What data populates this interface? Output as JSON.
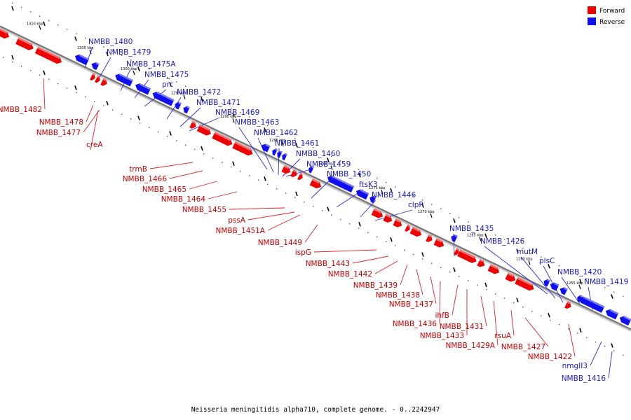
{
  "legend": {
    "forward_label": "Forward",
    "reverse_label": "Reverse",
    "forward_color": "#ee0000",
    "reverse_color": "#1010ee"
  },
  "caption": "Neisseria meningitidis alpha710, complete genome. - 0..2242947",
  "ticks": [
    "1310 kbp",
    "1305 kbp",
    "1300 kbp",
    "1295 kbp",
    "1290 kbp",
    "1285 kbp",
    "1280 kbp",
    "1275 kbp",
    "1270 kbp",
    "1265 kbp",
    "1260 kbp",
    "1255 kbp"
  ],
  "genes": [
    {
      "label": "NMBB_1482",
      "strand": "forward"
    },
    {
      "label": "NMBB_1480",
      "strand": "reverse"
    },
    {
      "label": "NMBB_1479",
      "strand": "reverse"
    },
    {
      "label": "NMBB_1478",
      "strand": "forward"
    },
    {
      "label": "NMBB_1477",
      "strand": "forward"
    },
    {
      "label": "creA",
      "strand": "forward"
    },
    {
      "label": "NMBB_1475A",
      "strand": "reverse"
    },
    {
      "label": "NMBB_1475",
      "strand": "reverse"
    },
    {
      "label": "prc",
      "strand": "reverse"
    },
    {
      "label": "NMBB_1472",
      "strand": "reverse"
    },
    {
      "label": "NMBB_1471",
      "strand": "reverse"
    },
    {
      "label": "NMBB_1469",
      "strand": "reverse"
    },
    {
      "label": "trmB",
      "strand": "forward"
    },
    {
      "label": "NMBB_1466",
      "strand": "forward"
    },
    {
      "label": "NMBB_1465",
      "strand": "forward"
    },
    {
      "label": "NMBB_1464",
      "strand": "forward"
    },
    {
      "label": "NMBB_1463",
      "strand": "reverse"
    },
    {
      "label": "NMBB_1462",
      "strand": "reverse"
    },
    {
      "label": "NMBB_1461",
      "strand": "reverse"
    },
    {
      "label": "NMBB_1460",
      "strand": "reverse"
    },
    {
      "label": "NMBB_1459",
      "strand": "reverse"
    },
    {
      "label": "NMBB_1455",
      "strand": "forward"
    },
    {
      "label": "pssA",
      "strand": "forward"
    },
    {
      "label": "NMBB_1451A",
      "strand": "forward"
    },
    {
      "label": "NMBB_1450",
      "strand": "reverse"
    },
    {
      "label": "NMBB_1449",
      "strand": "forward"
    },
    {
      "label": "ftsK3",
      "strand": "reverse"
    },
    {
      "label": "NMBB_1446",
      "strand": "reverse"
    },
    {
      "label": "clpP",
      "strand": "reverse"
    },
    {
      "label": "ispG",
      "strand": "forward"
    },
    {
      "label": "NMBB_1443",
      "strand": "forward"
    },
    {
      "label": "NMBB_1442",
      "strand": "forward"
    },
    {
      "label": "NMBB_1439",
      "strand": "forward"
    },
    {
      "label": "NMBB_1438",
      "strand": "forward"
    },
    {
      "label": "NMBB_1437",
      "strand": "forward"
    },
    {
      "label": "NMBB_1436",
      "strand": "forward"
    },
    {
      "label": "NMBB_1435",
      "strand": "reverse"
    },
    {
      "label": "ihfB",
      "strand": "forward"
    },
    {
      "label": "NMBB_1433",
      "strand": "forward"
    },
    {
      "label": "NMBB_1431",
      "strand": "forward"
    },
    {
      "label": "NMBB_1429A",
      "strand": "forward"
    },
    {
      "label": "rsuA",
      "strand": "forward"
    },
    {
      "label": "NMBB_1427",
      "strand": "forward"
    },
    {
      "label": "NMBB_1426",
      "strand": "reverse"
    },
    {
      "label": "mutM",
      "strand": "reverse"
    },
    {
      "label": "plsC",
      "strand": "reverse"
    },
    {
      "label": "NMBB_1422",
      "strand": "forward"
    },
    {
      "label": "NMBB_1420",
      "strand": "reverse"
    },
    {
      "label": "NMBB_1419",
      "strand": "reverse"
    },
    {
      "label": "nmgII3",
      "strand": "reverse"
    },
    {
      "label": "NMBB_1416",
      "strand": "reverse"
    }
  ]
}
